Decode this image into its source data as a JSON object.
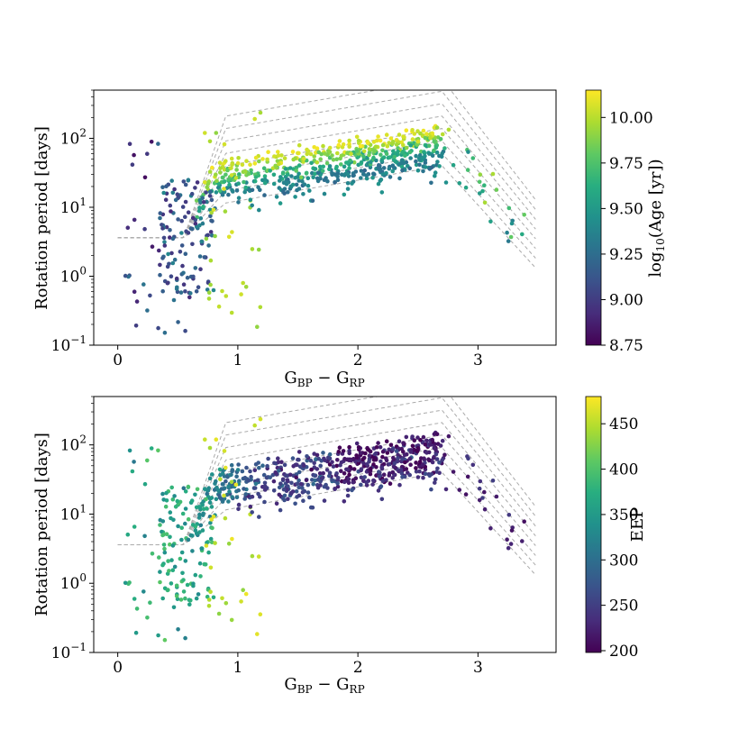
{
  "chart_data": [
    {
      "type": "scatter",
      "panel": "top",
      "xlabel_main": "G",
      "xlabel_sub1": "BP",
      "xlabel_mid": " − G",
      "xlabel_sub2": "RP",
      "ylabel": "Rotation period [days]",
      "xlim": [
        -0.2,
        3.65
      ],
      "ylim": [
        0.1,
        500
      ],
      "yscale": "log",
      "x_ticks": [
        0,
        1,
        2,
        3
      ],
      "x_tick_labels": [
        "0",
        "1",
        "2",
        "3"
      ],
      "y_tick_exponents": [
        "-1",
        "0",
        "1",
        "2"
      ],
      "y_ticks": [
        0.1,
        1,
        10,
        100
      ],
      "colorbar": {
        "label_pre": "log",
        "label_sub": "10",
        "label_post": "(Age [yr])",
        "range": [
          8.75,
          10.15
        ],
        "ticks": [
          8.75,
          9.0,
          9.25,
          9.5,
          9.75,
          10.0
        ],
        "tick_labels": [
          "8.75",
          "9.00",
          "9.25",
          "9.50",
          "9.75",
          "10.00"
        ],
        "colormap": "viridis"
      },
      "gyrochrones": {
        "color": "#aaaaaa",
        "style": "dashed",
        "description": "Model rotation-period isochrones for a grid of ages"
      },
      "series_description": "Stars colored by log10 age; slow-rotator sequence from ~0.6 to ~2.7 in G_BP-G_RP with periods ~10-150 days"
    },
    {
      "type": "scatter",
      "panel": "bottom",
      "xlabel_main": "G",
      "xlabel_sub1": "BP",
      "xlabel_mid": " − G",
      "xlabel_sub2": "RP",
      "ylabel": "Rotation period [days]",
      "xlim": [
        -0.2,
        3.65
      ],
      "ylim": [
        0.1,
        500
      ],
      "yscale": "log",
      "x_ticks": [
        0,
        1,
        2,
        3
      ],
      "x_tick_labels": [
        "0",
        "1",
        "2",
        "3"
      ],
      "y_tick_exponents": [
        "-1",
        "0",
        "1",
        "2"
      ],
      "y_ticks": [
        0.1,
        1,
        10,
        100
      ],
      "colorbar": {
        "label": "EEP",
        "range": [
          198,
          480
        ],
        "ticks": [
          200,
          250,
          300,
          350,
          400,
          450
        ],
        "tick_labels": [
          "200",
          "250",
          "300",
          "350",
          "400",
          "450"
        ],
        "colormap": "viridis"
      },
      "gyrochrones": {
        "color": "#aaaaaa",
        "style": "dashed",
        "description": "Model rotation-period isochrones for a grid of ages"
      },
      "series_description": "Same stars colored by equivalent evolutionary phase (EEP)"
    }
  ]
}
